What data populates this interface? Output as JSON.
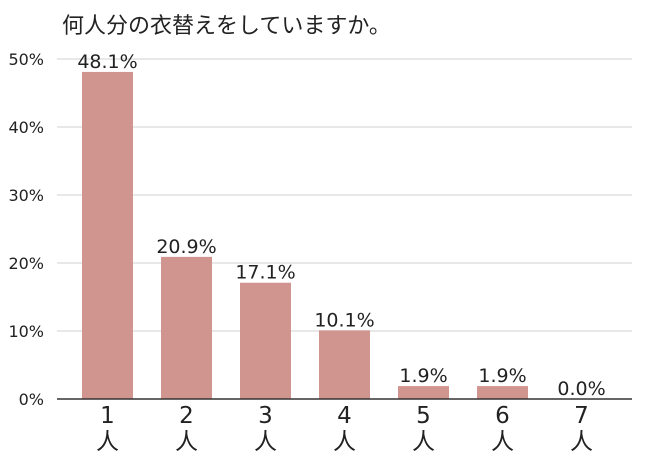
{
  "chart_data": {
    "type": "bar",
    "title": "何人分の衣替えをしていますか。",
    "categories": [
      "1\n人",
      "2\n人",
      "3\n人",
      "4\n人",
      "5\n人",
      "6\n人",
      "7\n人"
    ],
    "values": [
      48.1,
      20.9,
      17.1,
      10.1,
      1.9,
      1.9,
      0.0
    ],
    "data_labels": [
      "48.1%",
      "20.9%",
      "17.1%",
      "10.1%",
      "1.9%",
      "1.9%",
      "0.0%"
    ],
    "yticks": [
      "0%",
      "10%",
      "20%",
      "30%",
      "40%",
      "50%"
    ],
    "ylim": [
      0,
      50
    ],
    "xlabel": "",
    "ylabel": "",
    "grid": true,
    "bar_color": "#d0958f"
  }
}
